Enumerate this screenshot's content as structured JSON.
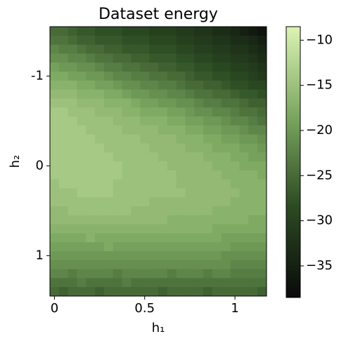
{
  "chart_data": {
    "type": "heatmap",
    "title": "Dataset energy",
    "x_label": "h₁",
    "y_label": "h₂",
    "xlim": [
      -0.025,
      1.175
    ],
    "ylim": [
      -1.55,
      1.45
    ],
    "xticks": [
      0,
      0.5,
      1
    ],
    "yticks": [
      -1,
      0,
      1
    ],
    "colormap": [
      "#0a0a0a",
      "#2b4a22",
      "#7aa65f",
      "#dcf3b4"
    ],
    "clim": [
      -38.5,
      -8.5
    ],
    "cticks": [
      {
        "value": -35,
        "label": "−35"
      },
      {
        "value": -30,
        "label": "−30"
      },
      {
        "value": -25,
        "label": "−25"
      },
      {
        "value": -20,
        "label": "−20"
      },
      {
        "value": -15,
        "label": "−15"
      },
      {
        "value": -10,
        "label": "−10"
      }
    ],
    "z": [
      [
        -25,
        -25,
        -26,
        -27,
        -27,
        -28,
        -28,
        -28,
        -29,
        -29,
        -29,
        -30,
        -30,
        -30,
        -31,
        -31,
        -32,
        -32,
        -33,
        -33,
        -34,
        -35,
        -36,
        -37
      ],
      [
        -24,
        -24,
        -25,
        -26,
        -26,
        -27,
        -27,
        -27,
        -28,
        -28,
        -28,
        -29,
        -29,
        -29,
        -30,
        -30,
        -31,
        -31,
        -32,
        -32,
        -33,
        -33,
        -34,
        -35
      ],
      [
        -22,
        -23,
        -23,
        -24,
        -25,
        -25,
        -26,
        -26,
        -27,
        -27,
        -27,
        -28,
        -28,
        -28,
        -29,
        -29,
        -30,
        -30,
        -31,
        -31,
        -32,
        -32,
        -33,
        -34
      ],
      [
        -21,
        -21,
        -22,
        -22,
        -23,
        -24,
        -24,
        -25,
        -25,
        -26,
        -26,
        -27,
        -27,
        -27,
        -28,
        -28,
        -29,
        -29,
        -30,
        -30,
        -31,
        -31,
        -32,
        -33
      ],
      [
        -19,
        -20,
        -20,
        -21,
        -21,
        -22,
        -23,
        -23,
        -24,
        -24,
        -25,
        -25,
        -26,
        -26,
        -27,
        -27,
        -28,
        -28,
        -29,
        -29,
        -30,
        -30,
        -31,
        -32
      ],
      [
        -18,
        -18,
        -19,
        -19,
        -20,
        -20,
        -21,
        -22,
        -22,
        -23,
        -23,
        -24,
        -24,
        -25,
        -25,
        -26,
        -27,
        -27,
        -28,
        -28,
        -29,
        -29,
        -30,
        -31
      ],
      [
        -17,
        -17,
        -17,
        -18,
        -18,
        -19,
        -19,
        -20,
        -21,
        -21,
        -22,
        -22,
        -23,
        -23,
        -24,
        -25,
        -25,
        -26,
        -26,
        -27,
        -28,
        -28,
        -29,
        -29
      ],
      [
        -16,
        -16,
        -16,
        -17,
        -17,
        -17,
        -18,
        -18,
        -19,
        -20,
        -20,
        -21,
        -21,
        -22,
        -22,
        -23,
        -24,
        -24,
        -25,
        -25,
        -26,
        -27,
        -27,
        -28
      ],
      [
        -15,
        -15,
        -15,
        -16,
        -16,
        -16,
        -17,
        -17,
        -17,
        -18,
        -19,
        -19,
        -20,
        -20,
        -21,
        -21,
        -22,
        -23,
        -23,
        -24,
        -24,
        -25,
        -26,
        -26
      ],
      [
        -14,
        -14,
        -15,
        -15,
        -15,
        -16,
        -16,
        -16,
        -17,
        -17,
        -18,
        -18,
        -18,
        -19,
        -19,
        -20,
        -21,
        -21,
        -22,
        -22,
        -23,
        -24,
        -24,
        -25
      ],
      [
        -14,
        -14,
        -14,
        -15,
        -15,
        -15,
        -15,
        -16,
        -16,
        -16,
        -17,
        -17,
        -17,
        -18,
        -18,
        -19,
        -19,
        -20,
        -20,
        -21,
        -22,
        -22,
        -23,
        -24
      ],
      [
        -14,
        -14,
        -14,
        -14,
        -15,
        -15,
        -15,
        -15,
        -16,
        -16,
        -16,
        -16,
        -17,
        -17,
        -17,
        -18,
        -18,
        -19,
        -19,
        -20,
        -20,
        -21,
        -22,
        -22
      ],
      [
        -14,
        -14,
        -14,
        -14,
        -14,
        -15,
        -15,
        -15,
        -15,
        -15,
        -16,
        -16,
        -16,
        -16,
        -17,
        -17,
        -17,
        -18,
        -18,
        -19,
        -19,
        -20,
        -20,
        -21
      ],
      [
        -14,
        -14,
        -14,
        -14,
        -14,
        -14,
        -15,
        -15,
        -15,
        -15,
        -15,
        -16,
        -16,
        -16,
        -16,
        -17,
        -17,
        -17,
        -18,
        -18,
        -18,
        -19,
        -19,
        -20
      ],
      [
        -14,
        -14,
        -14,
        -14,
        -14,
        -14,
        -14,
        -15,
        -15,
        -15,
        -15,
        -15,
        -16,
        -16,
        -16,
        -16,
        -16,
        -17,
        -17,
        -17,
        -18,
        -18,
        -19,
        -19
      ],
      [
        -14,
        -14,
        -14,
        -14,
        -14,
        -14,
        -14,
        -14,
        -15,
        -15,
        -15,
        -15,
        -15,
        -16,
        -16,
        -16,
        -16,
        -16,
        -17,
        -17,
        -17,
        -18,
        -18,
        -18
      ],
      [
        -14,
        -14,
        -14,
        -14,
        -14,
        -14,
        -14,
        -14,
        -15,
        -15,
        -15,
        -15,
        -15,
        -15,
        -16,
        -16,
        -16,
        -16,
        -16,
        -17,
        -17,
        -17,
        -17,
        -18
      ],
      [
        -15,
        -14,
        -14,
        -14,
        -14,
        -14,
        -14,
        -15,
        -15,
        -15,
        -15,
        -15,
        -15,
        -15,
        -16,
        -16,
        -16,
        -16,
        -16,
        -16,
        -17,
        -17,
        -17,
        -17
      ],
      [
        -15,
        -15,
        -15,
        -14,
        -14,
        -14,
        -14,
        -15,
        -15,
        -15,
        -15,
        -15,
        -15,
        -15,
        -15,
        -16,
        -16,
        -16,
        -16,
        -16,
        -16,
        -17,
        -17,
        -17
      ],
      [
        -15,
        -15,
        -15,
        -15,
        -15,
        -15,
        -15,
        -15,
        -15,
        -15,
        -15,
        -16,
        -16,
        -16,
        -16,
        -16,
        -16,
        -16,
        -16,
        -16,
        -17,
        -17,
        -17,
        -17
      ],
      [
        -16,
        -16,
        -15,
        -15,
        -15,
        -15,
        -15,
        -15,
        -15,
        -16,
        -16,
        -16,
        -16,
        -16,
        -16,
        -16,
        -16,
        -16,
        -17,
        -17,
        -17,
        -17,
        -17,
        -17
      ],
      [
        -16,
        -16,
        -16,
        -16,
        -16,
        -16,
        -16,
        -16,
        -16,
        -16,
        -16,
        -16,
        -16,
        -17,
        -17,
        -17,
        -17,
        -17,
        -17,
        -17,
        -17,
        -17,
        -18,
        -18
      ],
      [
        -17,
        -17,
        -17,
        -17,
        -17,
        -17,
        -17,
        -17,
        -17,
        -17,
        -17,
        -17,
        -17,
        -17,
        -17,
        -17,
        -17,
        -17,
        -18,
        -18,
        -18,
        -18,
        -18,
        -18
      ],
      [
        -18,
        -18,
        -18,
        -18,
        -17,
        -18,
        -18,
        -18,
        -18,
        -18,
        -18,
        -18,
        -18,
        -18,
        -18,
        -18,
        -18,
        -18,
        -18,
        -19,
        -19,
        -19,
        -19,
        -19
      ],
      [
        -19,
        -19,
        -19,
        -19,
        -19,
        -19,
        -18,
        -19,
        -19,
        -19,
        -19,
        -19,
        -19,
        -19,
        -19,
        -19,
        -19,
        -19,
        -19,
        -19,
        -20,
        -20,
        -20,
        -20
      ],
      [
        -20,
        -20,
        -20,
        -20,
        -20,
        -20,
        -20,
        -20,
        -20,
        -20,
        -20,
        -20,
        -20,
        -20,
        -20,
        -20,
        -20,
        -20,
        -20,
        -21,
        -21,
        -21,
        -21,
        -21
      ],
      [
        -21,
        -21,
        -21,
        -21,
        -21,
        -21,
        -21,
        -21,
        -21,
        -21,
        -21,
        -21,
        -21,
        -21,
        -21,
        -21,
        -21,
        -21,
        -21,
        -21,
        -22,
        -22,
        -22,
        -22
      ],
      [
        -22,
        -22,
        -23,
        -22,
        -22,
        -22,
        -22,
        -23,
        -22,
        -22,
        -22,
        -22,
        -22,
        -23,
        -22,
        -22,
        -22,
        -23,
        -22,
        -22,
        -23,
        -23,
        -23,
        -23
      ],
      [
        -24,
        -24,
        -24,
        -23,
        -24,
        -24,
        -24,
        -24,
        -23,
        -24,
        -24,
        -24,
        -24,
        -24,
        -24,
        -24,
        -24,
        -24,
        -24,
        -24,
        -24,
        -24,
        -24,
        -24
      ],
      [
        -25,
        -26,
        -25,
        -25,
        -25,
        -26,
        -25,
        -25,
        -25,
        -25,
        -25,
        -25,
        -26,
        -25,
        -25,
        -25,
        -25,
        -26,
        -25,
        -25,
        -25,
        -25,
        -25,
        -26
      ]
    ]
  }
}
